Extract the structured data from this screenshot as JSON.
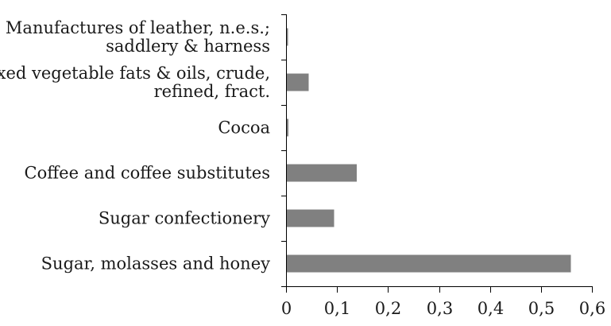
{
  "chart_data": {
    "type": "bar",
    "orientation": "horizontal",
    "categories": [
      [
        "Manufactures of leather, n.e.s.;",
        "saddlery & harness"
      ],
      [
        "Fixed vegetable fats & oils, crude,",
        "refined, fract."
      ],
      [
        "Cocoa"
      ],
      [
        "Coffee and coffee substitutes"
      ],
      [
        "Sugar confectionery"
      ],
      [
        "Sugar, molasses and honey"
      ]
    ],
    "values": [
      0.002,
      0.043,
      0.003,
      0.137,
      0.093,
      0.557
    ],
    "x_ticks": [
      0,
      0.1,
      0.2,
      0.3,
      0.4,
      0.5,
      0.6
    ],
    "x_tick_labels": [
      "0",
      "0,1",
      "0,2",
      "0,3",
      "0,4",
      "0,5",
      "0,6"
    ],
    "xlim": [
      0,
      0.6
    ],
    "title": "",
    "xlabel": "",
    "ylabel": "",
    "grid": false,
    "legend": "none",
    "bar_color": "#808080"
  }
}
